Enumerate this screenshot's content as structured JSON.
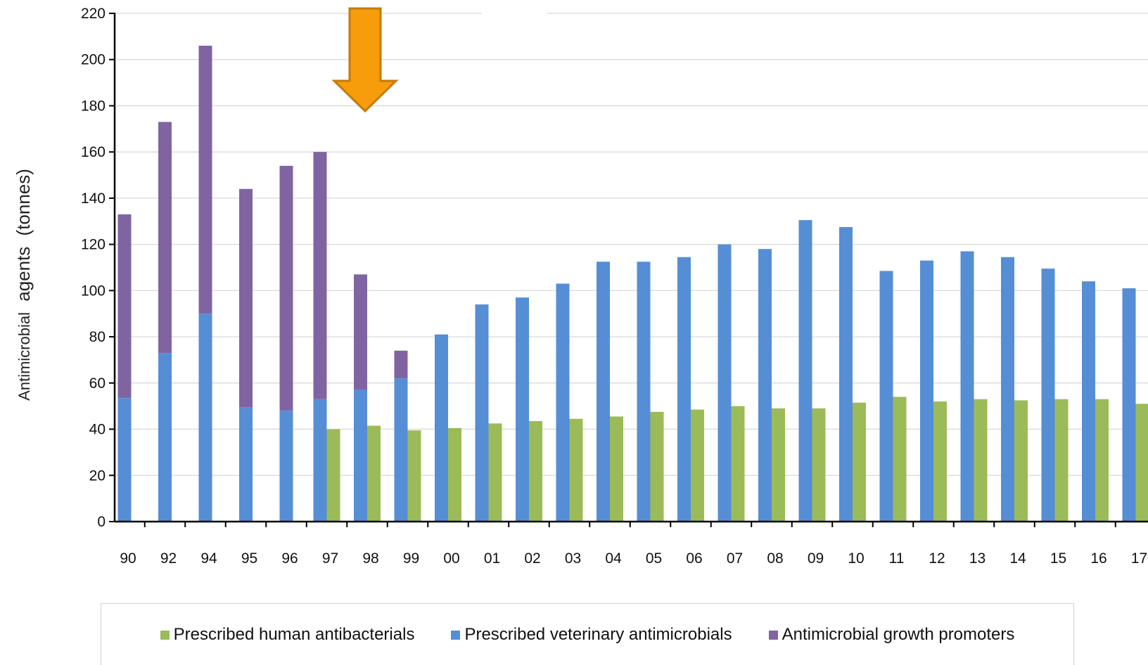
{
  "chart_data": {
    "type": "bar",
    "title": "",
    "xlabel": "",
    "ylabel_parts": [
      "Antimicrobial",
      "agents",
      "(tonnes)"
    ],
    "ylim": [
      0,
      220
    ],
    "yticks": [
      0,
      20,
      40,
      60,
      80,
      100,
      120,
      140,
      160,
      180,
      200,
      220
    ],
    "grid": true,
    "legend_position": "bottom",
    "categories": [
      "90",
      "92",
      "94",
      "95",
      "96",
      "97",
      "98",
      "99",
      "00",
      "01",
      "02",
      "03",
      "04",
      "05",
      "06",
      "07",
      "08",
      "09",
      "10",
      "11",
      "12",
      "13",
      "14",
      "15",
      "16",
      "17"
    ],
    "series": [
      {
        "name": "Prescribed human antibacterials",
        "color": "#9bbb59",
        "values": [
          null,
          null,
          null,
          null,
          null,
          40,
          41.5,
          39.5,
          40.5,
          42.5,
          43.5,
          44.5,
          45.5,
          47.5,
          48.5,
          50,
          49,
          49,
          51.5,
          54,
          52,
          53,
          52.5,
          53,
          53,
          51
        ]
      },
      {
        "name": "Prescribed veterinary antimicrobials",
        "color": "#558ed5",
        "values": [
          53.5,
          73,
          90,
          49.5,
          48,
          53,
          57,
          62,
          81,
          94,
          97,
          103,
          112.5,
          112.5,
          114.5,
          120,
          118,
          130.5,
          127.5,
          108.5,
          113,
          117,
          114.5,
          109.5,
          104,
          101
        ]
      },
      {
        "name": "Antimicrobial growth promoters",
        "color": "#8064a2",
        "values": [
          79.5,
          100,
          116,
          94.5,
          106,
          107,
          50,
          12,
          null,
          null,
          null,
          null,
          null,
          null,
          null,
          null,
          null,
          null,
          null,
          null,
          null,
          null,
          null,
          null,
          null,
          null
        ]
      }
    ],
    "annotations": [
      {
        "type": "arrow",
        "shape": "down-arrow",
        "at_category": "98",
        "color": "#f79c0a",
        "stroke": "#c47a0a"
      }
    ]
  }
}
